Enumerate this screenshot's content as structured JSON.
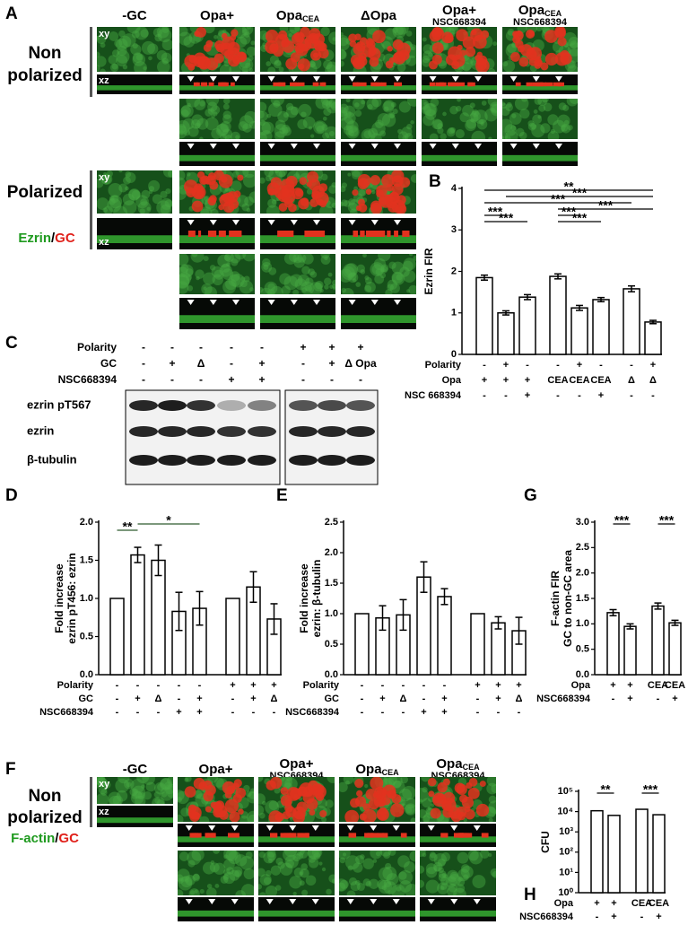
{
  "panels": {
    "A": {
      "label": "A",
      "columns": [
        {
          "text": "-GC"
        },
        {
          "text": "Opa+"
        },
        {
          "text": "Opa",
          "sub": "CEA"
        },
        {
          "text": "ΔOpa"
        },
        {
          "text": "Opa+",
          "line2": "NSC668394"
        },
        {
          "text": "Opa",
          "sub": "CEA",
          "line2": "NSC668394"
        }
      ],
      "nonpolarized": [
        "Non",
        "polarized"
      ],
      "polarized": "Polarized",
      "stain": [
        "Ezrin",
        "/",
        "GC"
      ],
      "view_labels": [
        "xy",
        "xz",
        "xy",
        "xz"
      ]
    },
    "C": {
      "label": "C",
      "rows": [
        {
          "name": "Polarity",
          "values": [
            "-",
            "-",
            "-",
            "-",
            "-",
            "+",
            "+",
            "+"
          ]
        },
        {
          "name": "GC",
          "values": [
            "-",
            "+",
            "Δ",
            "-",
            "+",
            "-",
            "+",
            "Δ Opa"
          ]
        },
        {
          "name": "NSC668394",
          "values": [
            "-",
            "-",
            "-",
            "+",
            "+",
            "-",
            "-",
            "-"
          ]
        }
      ],
      "blots": [
        "ezrin pT567",
        "ezrin",
        "β-tubulin"
      ]
    },
    "F": {
      "label": "F",
      "columns": [
        {
          "text": "-GC"
        },
        {
          "text": "Opa+"
        },
        {
          "text": "Opa+",
          "line2": "NSC668394"
        },
        {
          "text": "Opa",
          "sub": "CEA"
        },
        {
          "text": "Opa",
          "sub": "CEA",
          "line2": "NSC668394"
        }
      ],
      "nonpolarized": [
        "Non",
        "polarized"
      ],
      "stain": [
        "F-actin",
        "/",
        "GC"
      ],
      "view_labels": [
        "xy",
        "xz"
      ]
    }
  },
  "chart_data": [
    {
      "panel": "B",
      "type": "bar",
      "y_label": [
        "Ezrin FIR"
      ],
      "color": "#ffffff",
      "values": [
        1.85,
        1.0,
        1.38,
        1.88,
        1.12,
        1.32,
        1.58,
        0.78
      ],
      "errors": [
        0.06,
        0.05,
        0.06,
        0.06,
        0.06,
        0.05,
        0.07,
        0.04
      ],
      "ylim": [
        0,
        4
      ],
      "yticks": [
        0,
        1,
        2,
        3,
        4
      ],
      "category_rows": [
        {
          "name": "Polarity",
          "values": [
            "-",
            "+",
            "-",
            "-",
            "+",
            "-",
            "-",
            "+"
          ]
        },
        {
          "name": "Opa",
          "values": [
            "+",
            "+",
            "+",
            "CEA",
            "CEA",
            "CEA",
            "Δ",
            "Δ"
          ]
        },
        {
          "name": "NSC 668394",
          "values": [
            "-",
            "-",
            "+",
            "-",
            "-",
            "+",
            "-",
            "-"
          ]
        }
      ],
      "annotations": [
        "**",
        "***",
        "***",
        "***",
        "***",
        "***",
        "***",
        "***"
      ]
    },
    {
      "panel": "D",
      "type": "bar",
      "y_label": [
        "Fold increase",
        "ezrin pT456: ezrin"
      ],
      "color": "#ffffff",
      "values": [
        1.0,
        1.57,
        1.5,
        0.83,
        0.87,
        1.0,
        1.15,
        0.73
      ],
      "errors": [
        0,
        0.1,
        0.2,
        0.25,
        0.22,
        0,
        0.2,
        0.2
      ],
      "ylim": [
        0,
        2.0
      ],
      "yticks": [
        {
          "value": 0,
          "label": "0.0"
        },
        {
          "value": 0.5,
          "label": "0.5"
        },
        {
          "value": 1,
          "label": "1.0"
        },
        {
          "value": 1.5,
          "label": "1.5"
        },
        {
          "value": 2,
          "label": "2.0"
        }
      ],
      "category_rows": [
        {
          "name": "Polarity",
          "values": [
            "-",
            "-",
            "-",
            "-",
            "-",
            "+",
            "+",
            "+"
          ]
        },
        {
          "name": "GC",
          "values": [
            "-",
            "+",
            "Δ",
            "-",
            "+",
            "-",
            "+",
            "Δ"
          ]
        },
        {
          "name": "NSC668394",
          "values": [
            "-",
            "-",
            "-",
            "+",
            "+",
            "-",
            "-",
            "-"
          ]
        }
      ],
      "annotations": [
        "**",
        "*"
      ]
    },
    {
      "panel": "E",
      "type": "bar",
      "y_label": [
        "Fold increase",
        "ezrin: β-tubulin"
      ],
      "color": "#ffffff",
      "values": [
        1.0,
        0.93,
        0.98,
        1.6,
        1.28,
        1.0,
        0.85,
        0.72
      ],
      "errors": [
        0,
        0.2,
        0.25,
        0.25,
        0.13,
        0,
        0.1,
        0.22
      ],
      "ylim": [
        0,
        2.5
      ],
      "yticks": [
        {
          "value": 0,
          "label": "0.0"
        },
        {
          "value": 0.5,
          "label": "0.5"
        },
        {
          "value": 1,
          "label": "1.0"
        },
        {
          "value": 1.5,
          "label": "1.5"
        },
        {
          "value": 2,
          "label": "2.0"
        },
        {
          "value": 2.5,
          "label": "2.5"
        }
      ],
      "category_rows": [
        {
          "name": "Polarity",
          "values": [
            "-",
            "-",
            "-",
            "-",
            "-",
            "+",
            "+",
            "+"
          ]
        },
        {
          "name": "GC",
          "values": [
            "-",
            "+",
            "Δ",
            "-",
            "+",
            "-",
            "+",
            "Δ"
          ]
        },
        {
          "name": "NSC668394",
          "values": [
            "-",
            "-",
            "-",
            "+",
            "+",
            "-",
            "-",
            "-"
          ]
        }
      ],
      "annotations": []
    },
    {
      "panel": "G",
      "type": "bar",
      "y_label": [
        "F-actin FIR",
        "GC to non-GC area"
      ],
      "color": "#ffffff",
      "values": [
        1.22,
        0.95,
        1.35,
        1.02
      ],
      "errors": [
        0.06,
        0.05,
        0.06,
        0.05
      ],
      "ylim": [
        0,
        3
      ],
      "yticks": [
        {
          "value": 0,
          "label": "0.0"
        },
        {
          "value": 0.5,
          "label": "0.5"
        },
        {
          "value": 1,
          "label": "1.0"
        },
        {
          "value": 1.5,
          "label": "1.5"
        },
        {
          "value": 2,
          "label": "2.0"
        },
        {
          "value": 2.5,
          "label": "2.5"
        },
        {
          "value": 3,
          "label": "3.0"
        }
      ],
      "category_rows": [
        {
          "name": "Opa",
          "values": [
            "+",
            "+",
            "CEA",
            "CEA"
          ]
        },
        {
          "name": "NSC668394",
          "values": [
            "-",
            "+",
            "-",
            "+"
          ]
        }
      ],
      "annotations": [
        "***",
        "***"
      ]
    },
    {
      "panel": "H",
      "type": "bar",
      "y_label": [
        "CFU"
      ],
      "color": "#ffffff",
      "log_scale": true,
      "values": [
        11000,
        6500,
        13000,
        7000
      ],
      "ylim": [
        1,
        100000
      ],
      "yticks": [
        {
          "value": 1,
          "label": "10⁰"
        },
        {
          "value": 10,
          "label": "10¹"
        },
        {
          "value": 100,
          "label": "10²"
        },
        {
          "value": 1000,
          "label": "10³"
        },
        {
          "value": 10000,
          "label": "10⁴"
        },
        {
          "value": 100000,
          "label": "10⁵"
        }
      ],
      "category_rows": [
        {
          "name": "Opa",
          "values": [
            "+",
            "+",
            "CEA",
            "CEA"
          ]
        },
        {
          "name": "NSC668394",
          "values": [
            "-",
            "+",
            "-",
            "+"
          ]
        }
      ],
      "annotations": [
        "**",
        "***"
      ]
    }
  ]
}
